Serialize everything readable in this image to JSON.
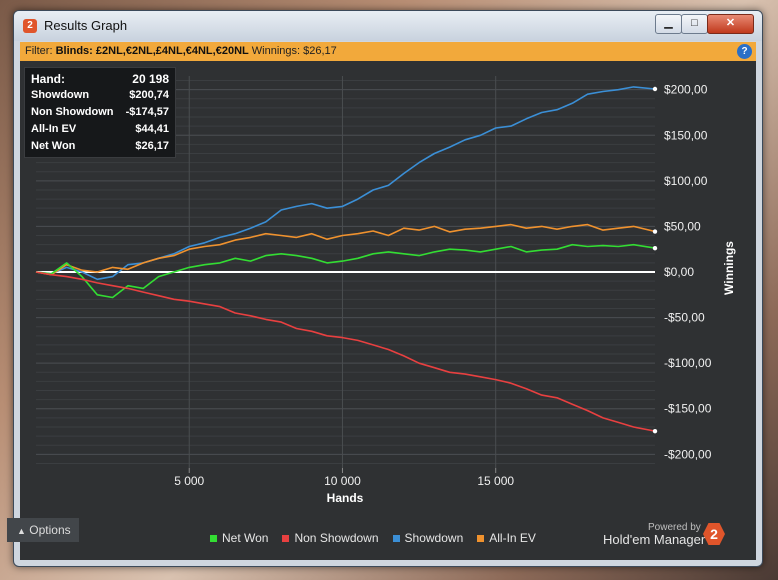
{
  "window": {
    "title": "Results Graph",
    "app_icon": "2",
    "buttons": {
      "minimize": "▁",
      "maximize": "□",
      "close": "✕"
    }
  },
  "filter": {
    "label": "Filter:",
    "blinds_label": "Blinds: £2NL,€2NL,£4NL,€4NL,€20NL",
    "winnings_label": "Winnings: $26,17",
    "help_icon": "?"
  },
  "stats": [
    {
      "k": "Hand:",
      "v": "20 198"
    },
    {
      "k": "Showdown",
      "v": "$200,74"
    },
    {
      "k": "Non Showdown",
      "v": "-$174,57"
    },
    {
      "k": "All-In EV",
      "v": "$44,41"
    },
    {
      "k": "Net Won",
      "v": "$26,17"
    }
  ],
  "colors": {
    "net_won": "#33dd33",
    "non_showdown": "#e84040",
    "showdown": "#3b8fd6",
    "allin_ev": "#f0922e",
    "zero_line": "#ffffff",
    "accent": "#f2a93b"
  },
  "legend": {
    "net_won": "Net Won",
    "non_showdown": "Non Showdown",
    "showdown": "Showdown",
    "allin_ev": "All-In EV"
  },
  "options_label": "Options",
  "powered_by": "Powered by",
  "brand": "Hold'em Manager",
  "chart_data": {
    "type": "line",
    "xlabel": "Hands",
    "ylabel": "Winnings",
    "xlim": [
      0,
      20198
    ],
    "ylim": [
      -215,
      215
    ],
    "x_ticks": [
      5000,
      10000,
      15000
    ],
    "x_tick_labels": [
      "5 000",
      "10 000",
      "15 000"
    ],
    "y_ticks": [
      200,
      150,
      100,
      50,
      0,
      -50,
      -100,
      -150,
      -200
    ],
    "y_tick_labels": [
      "$200,00",
      "$150,00",
      "$100,00",
      "$50,00",
      "$0,00",
      "-$50,00",
      "-$100,00",
      "-$150,00",
      "-$200,00"
    ],
    "grid": true,
    "series": [
      {
        "name": "Showdown",
        "color": "#3b8fd6",
        "points": [
          [
            0,
            0
          ],
          [
            500,
            -2
          ],
          [
            1000,
            5
          ],
          [
            1500,
            0
          ],
          [
            2000,
            -8
          ],
          [
            2500,
            -5
          ],
          [
            3000,
            8
          ],
          [
            3500,
            10
          ],
          [
            4000,
            15
          ],
          [
            4500,
            20
          ],
          [
            5000,
            28
          ],
          [
            5500,
            32
          ],
          [
            6000,
            38
          ],
          [
            6500,
            42
          ],
          [
            7000,
            48
          ],
          [
            7500,
            55
          ],
          [
            8000,
            68
          ],
          [
            8500,
            72
          ],
          [
            9000,
            75
          ],
          [
            9500,
            70
          ],
          [
            10000,
            72
          ],
          [
            10500,
            80
          ],
          [
            11000,
            90
          ],
          [
            11500,
            95
          ],
          [
            12000,
            108
          ],
          [
            12500,
            120
          ],
          [
            13000,
            130
          ],
          [
            13500,
            137
          ],
          [
            14000,
            145
          ],
          [
            14500,
            150
          ],
          [
            15000,
            158
          ],
          [
            15500,
            160
          ],
          [
            16000,
            168
          ],
          [
            16500,
            175
          ],
          [
            17000,
            178
          ],
          [
            17500,
            185
          ],
          [
            18000,
            195
          ],
          [
            18500,
            198
          ],
          [
            19000,
            200
          ],
          [
            19500,
            203
          ],
          [
            20198,
            200.74
          ]
        ]
      },
      {
        "name": "All-In EV",
        "color": "#f0922e",
        "points": [
          [
            0,
            0
          ],
          [
            500,
            -3
          ],
          [
            1000,
            8
          ],
          [
            1500,
            2
          ],
          [
            2000,
            0
          ],
          [
            2500,
            5
          ],
          [
            3000,
            3
          ],
          [
            3500,
            10
          ],
          [
            4000,
            15
          ],
          [
            4500,
            18
          ],
          [
            5000,
            25
          ],
          [
            5500,
            28
          ],
          [
            6000,
            30
          ],
          [
            6500,
            35
          ],
          [
            7000,
            38
          ],
          [
            7500,
            42
          ],
          [
            8000,
            40
          ],
          [
            8500,
            38
          ],
          [
            9000,
            42
          ],
          [
            9500,
            36
          ],
          [
            10000,
            40
          ],
          [
            10500,
            42
          ],
          [
            11000,
            45
          ],
          [
            11500,
            40
          ],
          [
            12000,
            48
          ],
          [
            12500,
            46
          ],
          [
            13000,
            50
          ],
          [
            13500,
            44
          ],
          [
            14000,
            47
          ],
          [
            14500,
            48
          ],
          [
            15000,
            50
          ],
          [
            15500,
            52
          ],
          [
            16000,
            48
          ],
          [
            16500,
            50
          ],
          [
            17000,
            47
          ],
          [
            17500,
            50
          ],
          [
            18000,
            52
          ],
          [
            18500,
            46
          ],
          [
            19000,
            48
          ],
          [
            19500,
            50
          ],
          [
            20198,
            44.41
          ]
        ]
      },
      {
        "name": "Net Won",
        "color": "#33dd33",
        "points": [
          [
            0,
            0
          ],
          [
            500,
            -2
          ],
          [
            1000,
            10
          ],
          [
            1500,
            -5
          ],
          [
            2000,
            -25
          ],
          [
            2500,
            -28
          ],
          [
            3000,
            -15
          ],
          [
            3500,
            -18
          ],
          [
            4000,
            -5
          ],
          [
            4500,
            0
          ],
          [
            5000,
            5
          ],
          [
            5500,
            8
          ],
          [
            6000,
            10
          ],
          [
            6500,
            15
          ],
          [
            7000,
            12
          ],
          [
            7500,
            18
          ],
          [
            8000,
            20
          ],
          [
            8500,
            18
          ],
          [
            9000,
            15
          ],
          [
            9500,
            10
          ],
          [
            10000,
            12
          ],
          [
            10500,
            15
          ],
          [
            11000,
            20
          ],
          [
            11500,
            22
          ],
          [
            12000,
            20
          ],
          [
            12500,
            18
          ],
          [
            13000,
            22
          ],
          [
            13500,
            25
          ],
          [
            14000,
            24
          ],
          [
            14500,
            22
          ],
          [
            15000,
            25
          ],
          [
            15500,
            28
          ],
          [
            16000,
            22
          ],
          [
            16500,
            24
          ],
          [
            17000,
            25
          ],
          [
            17500,
            30
          ],
          [
            18000,
            28
          ],
          [
            18500,
            29
          ],
          [
            19000,
            28
          ],
          [
            19500,
            30
          ],
          [
            20198,
            26.17
          ]
        ]
      },
      {
        "name": "Non Showdown",
        "color": "#e84040",
        "points": [
          [
            0,
            0
          ],
          [
            500,
            -3
          ],
          [
            1000,
            -5
          ],
          [
            1500,
            -8
          ],
          [
            2000,
            -12
          ],
          [
            2500,
            -15
          ],
          [
            3000,
            -18
          ],
          [
            3500,
            -22
          ],
          [
            4000,
            -26
          ],
          [
            4500,
            -30
          ],
          [
            5000,
            -32
          ],
          [
            5500,
            -35
          ],
          [
            6000,
            -38
          ],
          [
            6500,
            -45
          ],
          [
            7000,
            -48
          ],
          [
            7500,
            -52
          ],
          [
            8000,
            -55
          ],
          [
            8500,
            -62
          ],
          [
            9000,
            -65
          ],
          [
            9500,
            -70
          ],
          [
            10000,
            -72
          ],
          [
            10500,
            -75
          ],
          [
            11000,
            -80
          ],
          [
            11500,
            -85
          ],
          [
            12000,
            -92
          ],
          [
            12500,
            -100
          ],
          [
            13000,
            -105
          ],
          [
            13500,
            -110
          ],
          [
            14000,
            -112
          ],
          [
            14500,
            -115
          ],
          [
            15000,
            -118
          ],
          [
            15500,
            -122
          ],
          [
            16000,
            -128
          ],
          [
            16500,
            -135
          ],
          [
            17000,
            -138
          ],
          [
            17500,
            -145
          ],
          [
            18000,
            -152
          ],
          [
            18500,
            -160
          ],
          [
            19000,
            -165
          ],
          [
            19500,
            -170
          ],
          [
            20198,
            -174.57
          ]
        ]
      }
    ]
  }
}
